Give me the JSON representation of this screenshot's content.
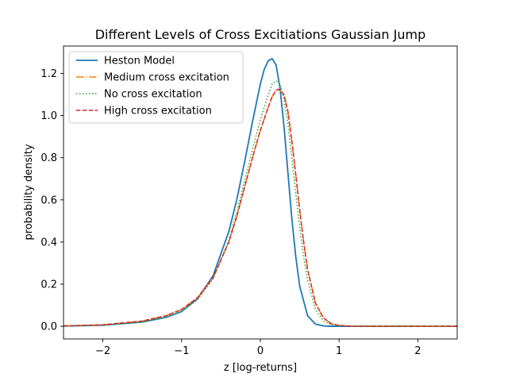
{
  "chart_data": {
    "type": "line",
    "title": "Different Levels of Cross Excitiations Gaussian Jump",
    "xlabel": "z [log-returns]",
    "ylabel": "probability density",
    "xlim": [
      -2.5,
      2.5
    ],
    "ylim": [
      -0.06,
      1.33
    ],
    "xticks": [
      -2,
      -1,
      0,
      1,
      2
    ],
    "xtick_labels": [
      "−2",
      "−1",
      "0",
      "1",
      "2"
    ],
    "yticks": [
      0.0,
      0.2,
      0.4,
      0.6,
      0.8,
      1.0,
      1.2
    ],
    "ytick_labels": [
      "0.0",
      "0.2",
      "0.4",
      "0.6",
      "0.8",
      "1.0",
      "1.2"
    ],
    "grid": false,
    "legend_position": "upper-left",
    "series": [
      {
        "name": "Heston Model",
        "color": "#1f77b4",
        "style": "solid",
        "x": [
          -2.5,
          -2.0,
          -1.5,
          -1.2,
          -1.0,
          -0.8,
          -0.6,
          -0.4,
          -0.3,
          -0.2,
          -0.1,
          0.0,
          0.05,
          0.1,
          0.15,
          0.2,
          0.25,
          0.3,
          0.35,
          0.4,
          0.45,
          0.5,
          0.6,
          0.7,
          0.8,
          0.9,
          1.0,
          1.2,
          1.5,
          2.0,
          2.5
        ],
        "y": [
          0.001,
          0.005,
          0.02,
          0.042,
          0.07,
          0.13,
          0.24,
          0.45,
          0.6,
          0.78,
          0.97,
          1.15,
          1.22,
          1.26,
          1.27,
          1.24,
          1.13,
          0.95,
          0.73,
          0.51,
          0.33,
          0.19,
          0.05,
          0.01,
          0.002,
          0.0,
          0.0,
          0.0,
          0.0,
          0.0,
          0.0
        ]
      },
      {
        "name": "Medium cross excitation",
        "color": "#ff7f0e",
        "style": "dashdot",
        "x": [
          -2.5,
          -2.0,
          -1.5,
          -1.2,
          -1.0,
          -0.8,
          -0.6,
          -0.4,
          -0.3,
          -0.2,
          -0.1,
          0.0,
          0.1,
          0.15,
          0.2,
          0.23,
          0.3,
          0.35,
          0.4,
          0.45,
          0.5,
          0.55,
          0.6,
          0.7,
          0.8,
          0.9,
          1.0,
          1.2,
          1.5,
          2.0,
          2.5
        ],
        "y": [
          0.002,
          0.007,
          0.025,
          0.05,
          0.08,
          0.135,
          0.23,
          0.4,
          0.52,
          0.66,
          0.8,
          0.93,
          1.04,
          1.09,
          1.12,
          1.125,
          1.1,
          1.02,
          0.88,
          0.72,
          0.55,
          0.4,
          0.27,
          0.11,
          0.04,
          0.012,
          0.004,
          0.0,
          0.0,
          0.0,
          0.0
        ]
      },
      {
        "name": "No cross excitation",
        "color": "#2ca02c",
        "style": "dotted",
        "x": [
          -2.5,
          -2.0,
          -1.5,
          -1.2,
          -1.0,
          -0.8,
          -0.6,
          -0.4,
          -0.3,
          -0.2,
          -0.1,
          0.0,
          0.1,
          0.15,
          0.2,
          0.25,
          0.3,
          0.35,
          0.4,
          0.45,
          0.5,
          0.55,
          0.6,
          0.7,
          0.8,
          0.9,
          1.0,
          1.2,
          1.5,
          2.0,
          2.5
        ],
        "y": [
          0.001,
          0.006,
          0.02,
          0.045,
          0.072,
          0.125,
          0.225,
          0.41,
          0.54,
          0.69,
          0.84,
          0.98,
          1.1,
          1.15,
          1.165,
          1.15,
          1.08,
          0.96,
          0.8,
          0.63,
          0.47,
          0.33,
          0.22,
          0.08,
          0.025,
          0.007,
          0.002,
          0.0,
          0.0,
          0.0,
          0.0
        ]
      },
      {
        "name": "High cross excitation",
        "color": "#d62728",
        "style": "dashed",
        "x": [
          -2.5,
          -2.0,
          -1.5,
          -1.2,
          -1.0,
          -0.8,
          -0.6,
          -0.4,
          -0.3,
          -0.2,
          -0.1,
          0.0,
          0.1,
          0.15,
          0.2,
          0.23,
          0.3,
          0.35,
          0.4,
          0.45,
          0.5,
          0.55,
          0.6,
          0.7,
          0.8,
          0.9,
          1.0,
          1.2,
          1.5,
          2.0,
          2.5
        ],
        "y": [
          0.002,
          0.007,
          0.025,
          0.05,
          0.08,
          0.135,
          0.23,
          0.4,
          0.52,
          0.66,
          0.8,
          0.93,
          1.04,
          1.09,
          1.12,
          1.125,
          1.1,
          1.02,
          0.88,
          0.72,
          0.55,
          0.4,
          0.27,
          0.11,
          0.04,
          0.012,
          0.004,
          0.0,
          0.0,
          0.0,
          0.0
        ]
      }
    ]
  }
}
